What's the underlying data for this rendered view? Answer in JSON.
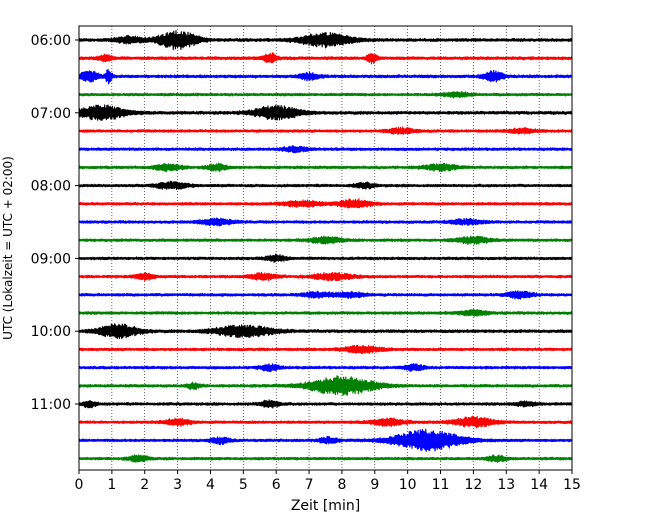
{
  "chart_data": {
    "type": "helicorder",
    "xlabel": "Zeit  [min]",
    "ylabel": "UTC (Lokalzeit = UTC + 02:00)",
    "xlim": [
      0,
      15
    ],
    "x_ticks": [
      0,
      1,
      2,
      3,
      4,
      5,
      6,
      7,
      8,
      9,
      10,
      11,
      12,
      13,
      14,
      15
    ],
    "grid": "vertical dotted at each minute",
    "trace_minutes": 15,
    "trace_colors": [
      "#000000",
      "#ff0000",
      "#0000ff",
      "#008000"
    ],
    "y_tick_labels": [
      {
        "label": "06:00",
        "row": 0
      },
      {
        "label": "07:00",
        "row": 4
      },
      {
        "label": "08:00",
        "row": 8
      },
      {
        "label": "09:00",
        "row": 12
      },
      {
        "label": "10:00",
        "row": 16
      },
      {
        "label": "11:00",
        "row": 20
      }
    ],
    "traces": [
      {
        "start": "06:00",
        "color_index": 0,
        "base": 1.0,
        "bursts": [
          {
            "t": 3.0,
            "amp": 5.5,
            "w": 0.6
          },
          {
            "t": 7.5,
            "amp": 4.0,
            "w": 0.8
          },
          {
            "t": 1.5,
            "amp": 2.0,
            "w": 0.4
          }
        ]
      },
      {
        "start": "06:15",
        "color_index": 1,
        "base": 1.0,
        "bursts": [
          {
            "t": 5.8,
            "amp": 3.0,
            "w": 0.2
          },
          {
            "t": 8.9,
            "amp": 3.0,
            "w": 0.15
          },
          {
            "t": 0.8,
            "amp": 2.0,
            "w": 0.2
          }
        ]
      },
      {
        "start": "06:30",
        "color_index": 2,
        "base": 1.0,
        "bursts": [
          {
            "t": 0.3,
            "amp": 3.0,
            "w": 0.3
          },
          {
            "t": 0.9,
            "amp": 4.0,
            "w": 0.1
          },
          {
            "t": 7.0,
            "amp": 2.0,
            "w": 0.3
          },
          {
            "t": 12.6,
            "amp": 3.0,
            "w": 0.3
          }
        ]
      },
      {
        "start": "06:45",
        "color_index": 3,
        "base": 0.9,
        "bursts": [
          {
            "t": 11.5,
            "amp": 1.5,
            "w": 0.4
          }
        ]
      },
      {
        "start": "07:00",
        "color_index": 0,
        "base": 1.0,
        "bursts": [
          {
            "t": 0.7,
            "amp": 4.5,
            "w": 0.7
          },
          {
            "t": 6.0,
            "amp": 4.0,
            "w": 0.7
          }
        ]
      },
      {
        "start": "07:15",
        "color_index": 1,
        "base": 0.9,
        "bursts": [
          {
            "t": 9.8,
            "amp": 1.8,
            "w": 0.4
          },
          {
            "t": 13.5,
            "amp": 1.5,
            "w": 0.4
          }
        ]
      },
      {
        "start": "07:30",
        "color_index": 2,
        "base": 0.9,
        "bursts": [
          {
            "t": 6.6,
            "amp": 1.5,
            "w": 0.4
          }
        ]
      },
      {
        "start": "07:45",
        "color_index": 3,
        "base": 0.9,
        "bursts": [
          {
            "t": 2.7,
            "amp": 2.0,
            "w": 0.4
          },
          {
            "t": 4.2,
            "amp": 2.0,
            "w": 0.3
          },
          {
            "t": 11.0,
            "amp": 1.8,
            "w": 0.5
          }
        ]
      },
      {
        "start": "08:00",
        "color_index": 0,
        "base": 0.9,
        "bursts": [
          {
            "t": 2.8,
            "amp": 2.0,
            "w": 0.5
          },
          {
            "t": 8.7,
            "amp": 1.5,
            "w": 0.3
          }
        ]
      },
      {
        "start": "08:15",
        "color_index": 1,
        "base": 0.9,
        "bursts": [
          {
            "t": 6.8,
            "amp": 1.8,
            "w": 0.6
          },
          {
            "t": 8.4,
            "amp": 2.5,
            "w": 0.5
          }
        ]
      },
      {
        "start": "08:30",
        "color_index": 2,
        "base": 0.9,
        "bursts": [
          {
            "t": 4.2,
            "amp": 1.8,
            "w": 0.5
          },
          {
            "t": 11.8,
            "amp": 1.5,
            "w": 0.5
          }
        ]
      },
      {
        "start": "08:45",
        "color_index": 3,
        "base": 0.9,
        "bursts": [
          {
            "t": 7.5,
            "amp": 1.8,
            "w": 0.5
          },
          {
            "t": 12.0,
            "amp": 2.0,
            "w": 0.5
          }
        ]
      },
      {
        "start": "09:00",
        "color_index": 0,
        "base": 0.9,
        "bursts": [
          {
            "t": 6.0,
            "amp": 2.0,
            "w": 0.3
          }
        ]
      },
      {
        "start": "09:15",
        "color_index": 1,
        "base": 0.9,
        "bursts": [
          {
            "t": 2.0,
            "amp": 2.0,
            "w": 0.3
          },
          {
            "t": 5.6,
            "amp": 2.0,
            "w": 0.4
          },
          {
            "t": 7.7,
            "amp": 2.0,
            "w": 0.6
          }
        ]
      },
      {
        "start": "09:30",
        "color_index": 2,
        "base": 0.9,
        "bursts": [
          {
            "t": 7.3,
            "amp": 1.6,
            "w": 0.5
          },
          {
            "t": 8.3,
            "amp": 1.6,
            "w": 0.4
          },
          {
            "t": 13.4,
            "amp": 2.0,
            "w": 0.4
          }
        ]
      },
      {
        "start": "09:45",
        "color_index": 3,
        "base": 0.9,
        "bursts": [
          {
            "t": 12.0,
            "amp": 1.6,
            "w": 0.4
          }
        ]
      },
      {
        "start": "10:00",
        "color_index": 0,
        "base": 1.0,
        "bursts": [
          {
            "t": 1.2,
            "amp": 4.0,
            "w": 0.6
          },
          {
            "t": 5.0,
            "amp": 3.5,
            "w": 0.9
          }
        ]
      },
      {
        "start": "10:15",
        "color_index": 1,
        "base": 0.9,
        "bursts": [
          {
            "t": 8.6,
            "amp": 2.0,
            "w": 0.6
          }
        ]
      },
      {
        "start": "10:30",
        "color_index": 2,
        "base": 0.9,
        "bursts": [
          {
            "t": 5.8,
            "amp": 1.8,
            "w": 0.3
          },
          {
            "t": 10.2,
            "amp": 1.8,
            "w": 0.3
          }
        ]
      },
      {
        "start": "10:45",
        "color_index": 3,
        "base": 0.9,
        "bursts": [
          {
            "t": 8.0,
            "amp": 5.5,
            "w": 1.0
          },
          {
            "t": 3.5,
            "amp": 1.8,
            "w": 0.2
          }
        ]
      },
      {
        "start": "11:00",
        "color_index": 0,
        "base": 0.9,
        "bursts": [
          {
            "t": 0.3,
            "amp": 2.0,
            "w": 0.2
          },
          {
            "t": 5.8,
            "amp": 2.0,
            "w": 0.3
          },
          {
            "t": 13.6,
            "amp": 1.5,
            "w": 0.3
          }
        ]
      },
      {
        "start": "11:15",
        "color_index": 1,
        "base": 0.9,
        "bursts": [
          {
            "t": 3.0,
            "amp": 2.0,
            "w": 0.4
          },
          {
            "t": 9.4,
            "amp": 2.0,
            "w": 0.5
          },
          {
            "t": 12.0,
            "amp": 3.0,
            "w": 0.6
          }
        ]
      },
      {
        "start": "11:30",
        "color_index": 2,
        "base": 0.9,
        "bursts": [
          {
            "t": 10.6,
            "amp": 6.5,
            "w": 1.0
          },
          {
            "t": 4.3,
            "amp": 1.8,
            "w": 0.3
          },
          {
            "t": 7.6,
            "amp": 1.8,
            "w": 0.3
          }
        ]
      },
      {
        "start": "11:45",
        "color_index": 3,
        "base": 0.9,
        "bursts": [
          {
            "t": 1.8,
            "amp": 1.8,
            "w": 0.3
          },
          {
            "t": 12.7,
            "amp": 1.6,
            "w": 0.3
          }
        ]
      }
    ]
  }
}
